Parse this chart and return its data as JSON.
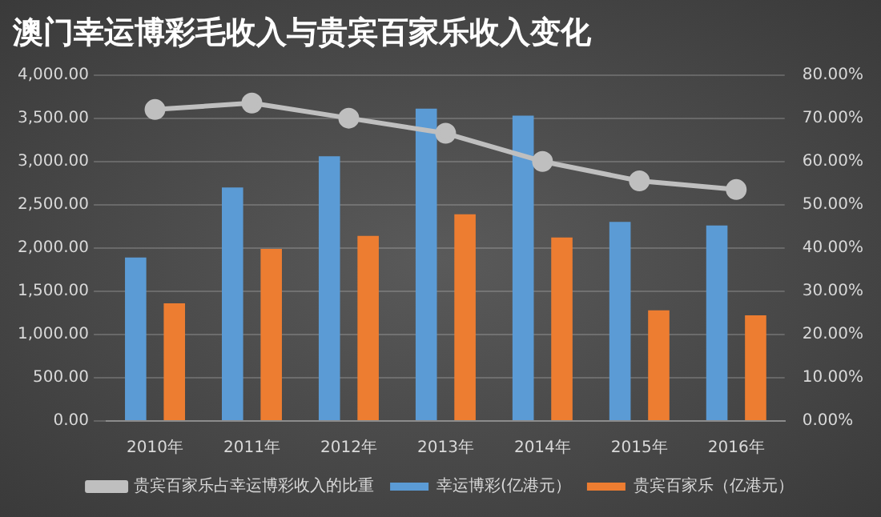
{
  "chart_data": {
    "type": "bar",
    "title": "澳门幸运博彩毛收入与贵宾百家乐收入变化",
    "categories": [
      "2010年",
      "2011年",
      "2012年",
      "2013年",
      "2014年",
      "2015年",
      "2016年"
    ],
    "series": [
      {
        "name": "幸运博彩(亿港元）",
        "color": "#5b9bd5",
        "values": [
          1890,
          2700,
          3060,
          3610,
          3530,
          2300,
          2260
        ]
      },
      {
        "name": "贵宾百家乐（亿港元）",
        "color": "#ed7d31",
        "values": [
          1360,
          1990,
          2140,
          2390,
          2120,
          1280,
          1220
        ]
      },
      {
        "name": "贵宾百家乐占幸运博彩收入的比重",
        "type": "line",
        "axis": "y2",
        "color": "#bfbfbf",
        "values": [
          72,
          73.5,
          70,
          66.5,
          60,
          55.5,
          53.5
        ]
      }
    ],
    "ylim": [
      0,
      4000
    ],
    "yticks": [
      {
        "value": 0,
        "label": "0.00"
      },
      {
        "value": 500,
        "label": "500.00"
      },
      {
        "value": 1000,
        "label": "1,000.00"
      },
      {
        "value": 1500,
        "label": "1,500.00"
      },
      {
        "value": 2000,
        "label": "2,000.00"
      },
      {
        "value": 2500,
        "label": "2,500.00"
      },
      {
        "value": 3000,
        "label": "3,000.00"
      },
      {
        "value": 3500,
        "label": "3,500.00"
      },
      {
        "value": 4000,
        "label": "4,000.00"
      }
    ],
    "y2lim": [
      0,
      80
    ],
    "y2ticks": [
      {
        "value": 0,
        "label": "0.00%"
      },
      {
        "value": 10,
        "label": "10.00%"
      },
      {
        "value": 20,
        "label": "20.00%"
      },
      {
        "value": 30,
        "label": "30.00%"
      },
      {
        "value": 40,
        "label": "40.00%"
      },
      {
        "value": 50,
        "label": "50.00%"
      },
      {
        "value": 60,
        "label": "60.00%"
      },
      {
        "value": 70,
        "label": "70.00%"
      },
      {
        "value": 80,
        "label": "80.00%"
      }
    ],
    "grid": "y",
    "legend": "bottom",
    "marker": "circle"
  }
}
